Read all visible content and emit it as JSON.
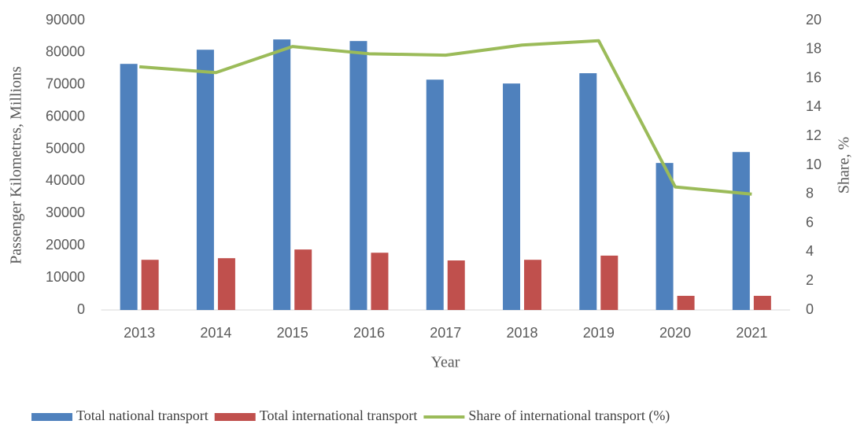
{
  "chart_data": {
    "type": "bar",
    "x_label": "Year",
    "y_label": "Passenger Kilometres, Millions",
    "y2_label": "Share, %",
    "categories": [
      "2013",
      "2014",
      "2015",
      "2016",
      "2017",
      "2018",
      "2019",
      "2020",
      "2021"
    ],
    "series": [
      {
        "name": "Total national transport",
        "type": "bar",
        "color": "#4f81bd",
        "values": [
          76500,
          80900,
          84100,
          83600,
          71600,
          70400,
          73600,
          45700,
          49100
        ]
      },
      {
        "name": "Total international transport",
        "type": "bar",
        "color": "#c0504d",
        "values": [
          15600,
          16100,
          18800,
          17800,
          15400,
          15600,
          16900,
          4400,
          4400
        ]
      },
      {
        "name": "Share of international transport (%)",
        "type": "line",
        "axis": "y2",
        "color": "#9bbb59",
        "values": [
          16.8,
          16.4,
          18.2,
          17.7,
          17.6,
          18.3,
          18.6,
          8.5,
          8.0
        ]
      }
    ],
    "ylim": [
      0,
      90000
    ],
    "yticks": [
      0,
      10000,
      20000,
      30000,
      40000,
      50000,
      60000,
      70000,
      80000,
      90000
    ],
    "y2lim": [
      0,
      20
    ],
    "y2ticks": [
      0,
      2,
      4,
      6,
      8,
      10,
      12,
      14,
      16,
      18,
      20
    ],
    "legend": "bottom"
  }
}
